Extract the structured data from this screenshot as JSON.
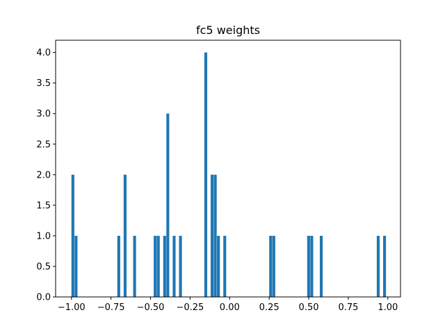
{
  "chart_data": {
    "type": "bar",
    "title": "fc5 weights",
    "xlabel": "",
    "ylabel": "",
    "xlim": [
      -1.1,
      1.08
    ],
    "ylim": [
      0,
      4.2
    ],
    "grid": false,
    "bar_color": "#1f77b4",
    "bin_width": 0.02,
    "x_ticks": [
      -1.0,
      -0.75,
      -0.5,
      -0.25,
      0.0,
      0.25,
      0.5,
      0.75,
      1.0
    ],
    "x_tick_labels": [
      "−1.00",
      "−0.75",
      "−0.50",
      "−0.25",
      "0.00",
      "0.25",
      "0.50",
      "0.75",
      "1.00"
    ],
    "y_ticks": [
      0.0,
      0.5,
      1.0,
      1.5,
      2.0,
      2.5,
      3.0,
      3.5,
      4.0
    ],
    "y_tick_labels": [
      "0.0",
      "0.5",
      "1.0",
      "1.5",
      "2.0",
      "2.5",
      "3.0",
      "3.5",
      "4.0"
    ],
    "bars": [
      {
        "x": -0.99,
        "count": 2
      },
      {
        "x": -0.97,
        "count": 1
      },
      {
        "x": -0.7,
        "count": 1
      },
      {
        "x": -0.66,
        "count": 2
      },
      {
        "x": -0.6,
        "count": 1
      },
      {
        "x": -0.47,
        "count": 1
      },
      {
        "x": -0.45,
        "count": 1
      },
      {
        "x": -0.41,
        "count": 1
      },
      {
        "x": -0.39,
        "count": 3
      },
      {
        "x": -0.35,
        "count": 1
      },
      {
        "x": -0.31,
        "count": 1
      },
      {
        "x": -0.15,
        "count": 4
      },
      {
        "x": -0.11,
        "count": 2
      },
      {
        "x": -0.09,
        "count": 2
      },
      {
        "x": -0.07,
        "count": 1
      },
      {
        "x": -0.03,
        "count": 1
      },
      {
        "x": 0.26,
        "count": 1
      },
      {
        "x": 0.28,
        "count": 1
      },
      {
        "x": 0.5,
        "count": 1
      },
      {
        "x": 0.52,
        "count": 1
      },
      {
        "x": 0.58,
        "count": 1
      },
      {
        "x": 0.94,
        "count": 1
      },
      {
        "x": 0.98,
        "count": 1
      }
    ]
  }
}
